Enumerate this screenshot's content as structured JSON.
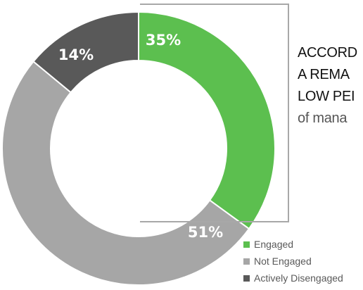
{
  "chart_data": {
    "type": "donut",
    "slices": [
      {
        "label": "Engaged",
        "value": 35,
        "display": "35%",
        "color": "#5cbf4f"
      },
      {
        "label": "Not Engaged",
        "value": 51,
        "display": "51%",
        "color": "#a6a6a6"
      },
      {
        "label": "Actively Disengaged",
        "value": 14,
        "display": "14%",
        "color": "#595959"
      }
    ],
    "start_angle_deg": 0,
    "direction": "clockwise",
    "legend_position": "bottom-right"
  },
  "callout": {
    "lines": [
      "ACCORD",
      "A REMA",
      "LOW PEI",
      "of mana"
    ]
  }
}
